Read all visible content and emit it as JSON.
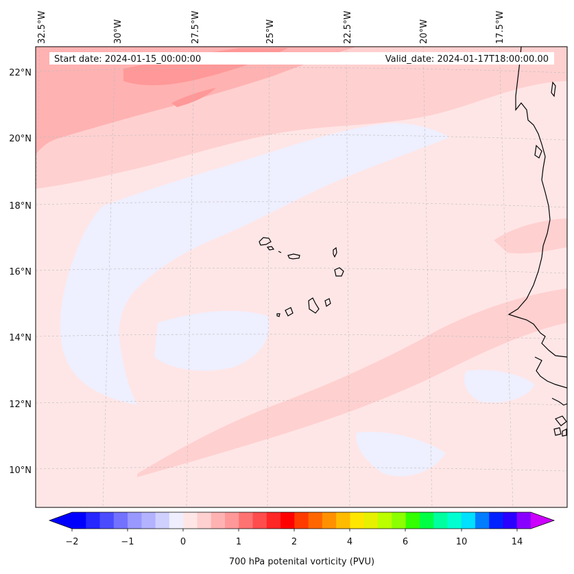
{
  "header": {
    "start_date": "Start date: 2024-01-15_00:00:00",
    "valid_date": "Valid_date: 2024-01-17T18:00:00.00"
  },
  "map": {
    "longitude_labels": [
      "32.5°W",
      "30°W",
      "27.5°W",
      "25°W",
      "22.5°W",
      "20°W",
      "17.5°W"
    ],
    "latitude_labels": [
      "22°N",
      "20°N",
      "18°N",
      "16°N",
      "14°N",
      "12°N",
      "10°N"
    ],
    "field": "700 hPa potential vorticity",
    "colors": {
      "background": "#ffe6e6",
      "negative_band": "#eeefff",
      "low_positive": "#ffd0d0",
      "mid_positive": "#ffb2b2",
      "high_positive": "#ff9898",
      "coastline": "#000000"
    }
  },
  "colorbar": {
    "label": "700 hPa potenital vorticity (PVU)",
    "ticks": [
      "−2",
      "−1",
      "0",
      "1",
      "2",
      "4",
      "6",
      "10",
      "14"
    ],
    "colors": [
      "#0000ff",
      "#2626ff",
      "#4c4cff",
      "#7272ff",
      "#9898ff",
      "#b2b2ff",
      "#d0d0ff",
      "#eeeeff",
      "#ffe6e6",
      "#ffd0d0",
      "#ffb2b2",
      "#ff9898",
      "#ff7272",
      "#ff4c4c",
      "#ff2626",
      "#ff0000",
      "#ff3c00",
      "#ff6600",
      "#ff9100",
      "#ffbb00",
      "#ffe600",
      "#e6f000",
      "#bbff00",
      "#8cff00",
      "#33ff00",
      "#00ff44",
      "#00ff9f",
      "#00ffd0",
      "#00e0ff",
      "#007cff",
      "#0022ff",
      "#2a00ff",
      "#8800ff"
    ],
    "max_color": "#cc00ff"
  }
}
